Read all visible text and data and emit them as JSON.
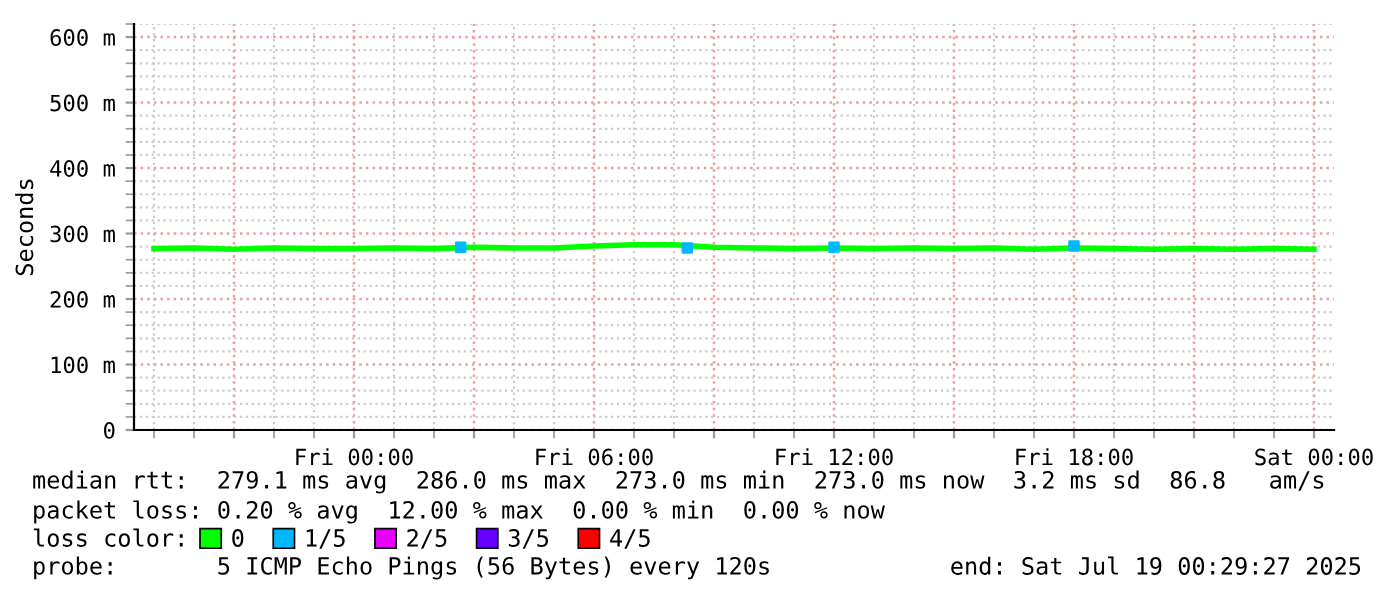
{
  "chart_data": {
    "type": "line",
    "ylabel": "Seconds",
    "x": [
      "2025-07-17T19:00",
      "2025-07-17T20:00",
      "2025-07-17T21:00",
      "2025-07-17T22:00",
      "2025-07-17T23:00",
      "2025-07-18T00:00",
      "2025-07-18T01:00",
      "2025-07-18T02:00",
      "2025-07-18T03:00",
      "2025-07-18T04:00",
      "2025-07-18T05:00",
      "2025-07-18T06:00",
      "2025-07-18T07:00",
      "2025-07-18T08:00",
      "2025-07-18T09:00",
      "2025-07-18T10:00",
      "2025-07-18T11:00",
      "2025-07-18T12:00",
      "2025-07-18T13:00",
      "2025-07-18T14:00",
      "2025-07-18T15:00",
      "2025-07-18T16:00",
      "2025-07-18T17:00",
      "2025-07-18T18:00",
      "2025-07-18T19:00",
      "2025-07-18T20:00",
      "2025-07-18T21:00",
      "2025-07-18T22:00",
      "2025-07-18T23:00",
      "2025-07-19T00:00"
    ],
    "series": [
      {
        "name": "0",
        "color": "#00ff00",
        "values": [
          277,
          278,
          276,
          278,
          277,
          277,
          278,
          277,
          279,
          278,
          278,
          281,
          283,
          283,
          279,
          278,
          277,
          278,
          277,
          278,
          277,
          278,
          276,
          278,
          277,
          276,
          277,
          276,
          277,
          276
        ]
      },
      {
        "name": "1/5",
        "color": "#00b8ff",
        "type": "scatter",
        "marker": "square",
        "x": [
          "2025-07-18T02:40",
          "2025-07-18T08:20",
          "2025-07-18T12:00",
          "2025-07-18T18:00"
        ],
        "values": [
          279,
          278,
          279,
          281
        ]
      },
      {
        "name": "2/5",
        "color": "#e600ff",
        "type": "scatter",
        "values": [
          null,
          null,
          null,
          null,
          null,
          null,
          null,
          null,
          null,
          null,
          null,
          null,
          null,
          null,
          null,
          null,
          null,
          null,
          null,
          null,
          null,
          null,
          null,
          null,
          null,
          null,
          null,
          null,
          null,
          null
        ]
      },
      {
        "name": "3/5",
        "color": "#6400ff",
        "type": "scatter",
        "values": [
          null,
          null,
          null,
          null,
          null,
          null,
          null,
          null,
          null,
          null,
          null,
          null,
          null,
          null,
          null,
          null,
          null,
          null,
          null,
          null,
          null,
          null,
          null,
          null,
          null,
          null,
          null,
          null,
          null,
          null
        ]
      },
      {
        "name": "4/5",
        "color": "#ff0000",
        "type": "scatter",
        "values": [
          null,
          null,
          null,
          null,
          null,
          null,
          null,
          null,
          null,
          null,
          null,
          null,
          null,
          null,
          null,
          null,
          null,
          null,
          null,
          null,
          null,
          null,
          null,
          null,
          null,
          null,
          null,
          null,
          null,
          null
        ]
      }
    ],
    "xlim": [
      "2025-07-17T18:30",
      "2025-07-19T00:30"
    ],
    "ylim": [
      0,
      620
    ],
    "xticks": [
      {
        "value": "2025-07-17T21:00",
        "label": null
      },
      {
        "value": "2025-07-18T00:00",
        "label": "Fri 00:00"
      },
      {
        "value": "2025-07-18T03:00",
        "label": null
      },
      {
        "value": "2025-07-18T06:00",
        "label": "Fri 06:00"
      },
      {
        "value": "2025-07-18T09:00",
        "label": null
      },
      {
        "value": "2025-07-18T12:00",
        "label": "Fri 12:00"
      },
      {
        "value": "2025-07-18T15:00",
        "label": null
      },
      {
        "value": "2025-07-18T18:00",
        "label": "Fri 18:00"
      },
      {
        "value": "2025-07-18T21:00",
        "label": null
      },
      {
        "value": "2025-07-19T00:00",
        "label": "Sat 00:00"
      }
    ],
    "yticks": [
      0,
      {
        "value": 100,
        "label": "100 m"
      },
      {
        "value": 200,
        "label": "200 m"
      },
      {
        "value": 300,
        "label": "300 m"
      },
      {
        "value": 400,
        "label": "400 m"
      },
      {
        "value": 500,
        "label": "500 m"
      },
      {
        "value": 600,
        "label": "600 m"
      }
    ],
    "grid": true,
    "legend": "bottom",
    "line_style": "solid",
    "annotations": [
      "median rtt:  279.1 ms avg  286.0 ms max  273.0 ms min  273.0 ms now  3.2 ms sd  86.8   am/s",
      "packet loss: 0.20 % avg  12.00 % max  0.00 % min  0.00 % now",
      "loss color:",
      "probe:       5 ICMP Echo Pings (56 Bytes) every 120s",
      "end: Sat Jul 19 00:29:27 2025"
    ]
  }
}
